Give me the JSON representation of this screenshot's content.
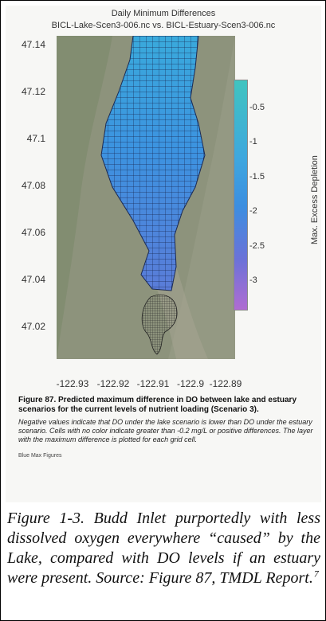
{
  "scan": {
    "plot_title": "Daily Minimum Differences",
    "plot_subtitle": "BICL-Lake-Scen3-006.nc vs. BICL-Estuary-Scen3-006.nc",
    "y_ticks": [
      "47.14",
      "47.12",
      "47.1",
      "47.08",
      "47.06",
      "47.04",
      "47.02"
    ],
    "x_ticks": [
      "-122.93",
      "-122.92",
      "-122.91",
      "-122.9",
      "-122.89"
    ],
    "colorbar": {
      "title": "Max. Excess Depletion",
      "ticks": [
        "-0.5",
        "-1",
        "-1.5",
        "-2",
        "-2.5",
        "-3"
      ],
      "colors": [
        "#40c4c0",
        "#3ea6df",
        "#3c8ee0",
        "#6b72d8",
        "#b06cd2"
      ]
    },
    "figure_caption_bold": "Figure 87.  Predicted maximum difference in DO between lake and estuary scenarios for the current levels of nutrient loading (Scenario 3).",
    "figure_caption_italic": "Negative values indicate that DO under the lake scenario is lower than DO under the estuary scenario.  Cells with no color indicate greater than -0.2 mg/L or positive differences.  The layer with the maximum difference is plotted for each grid cell.",
    "blue_max_label": "Blue Max Figures"
  },
  "caption": {
    "text": "Figure 1-3. Budd Inlet purportedly with less dissolved oxygen everywhere “caused” by the Lake, compared with DO levels if an estuary were present.  Source: Figure 87, TMDL Report.",
    "footnote": "7"
  }
}
